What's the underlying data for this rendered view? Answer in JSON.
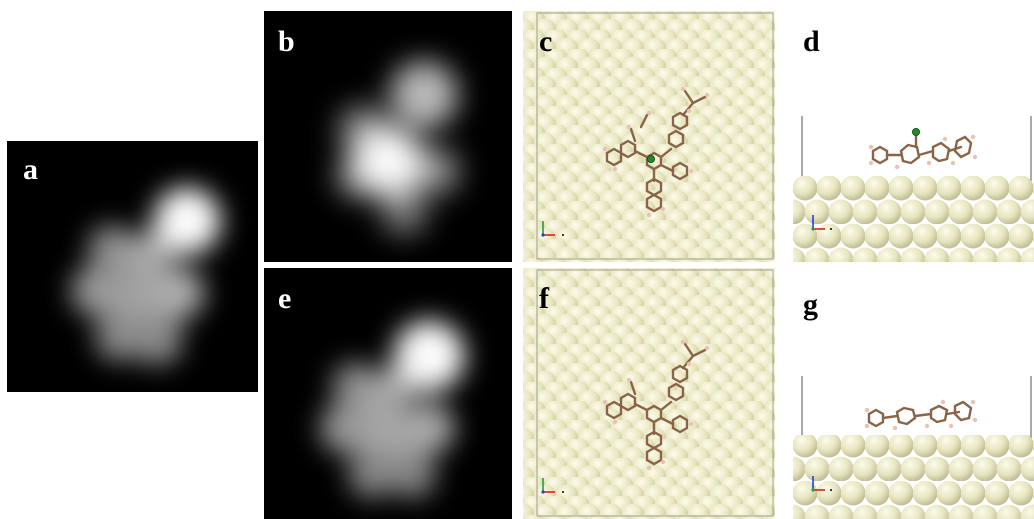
{
  "figure": {
    "panels": [
      {
        "id": "a",
        "label": "a",
        "kind": "stm-image"
      },
      {
        "id": "b",
        "label": "b",
        "kind": "stm-image"
      },
      {
        "id": "c",
        "label": "c",
        "kind": "model-top-view"
      },
      {
        "id": "d",
        "label": "d",
        "kind": "model-side-view"
      },
      {
        "id": "e",
        "label": "e",
        "kind": "stm-image"
      },
      {
        "id": "f",
        "label": "f",
        "kind": "model-top-view"
      },
      {
        "id": "g",
        "label": "g",
        "kind": "model-side-view"
      }
    ],
    "colors": {
      "stm_background": "#000000",
      "surface_atom": "#e6e4be",
      "molecule_carbon": "#8a6448",
      "molecule_hydrogen": "#e8c2b4",
      "adatom": "#1e8a2a",
      "axis_x": "#e02020",
      "axis_y": "#20a040",
      "axis_z": "#2040e0"
    }
  }
}
